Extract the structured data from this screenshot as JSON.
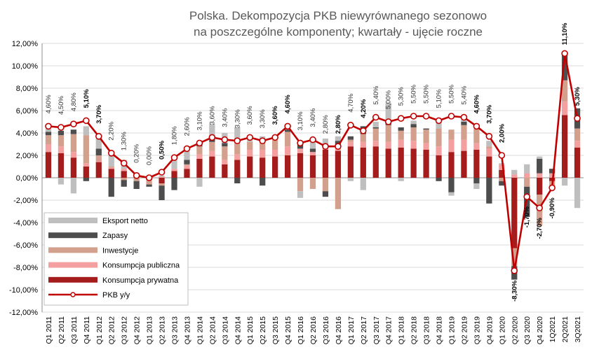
{
  "chart_data": {
    "type": "bar",
    "stacked": true,
    "title": "Polska. Dekompozycja PKB niewyrównanego sezonowo na poszczególne komponenty; kwartały - ujęcie roczne",
    "title_lines": [
      "Polska. Dekompozycja PKB niewyrównanego sezonowo",
      "na poszczególne komponenty; kwartały - ujęcie roczne"
    ],
    "xlabel": "",
    "ylabel": "",
    "ylim": [
      -12,
      12
    ],
    "yticks": [
      -12,
      -10,
      -8,
      -6,
      -4,
      -2,
      0,
      2,
      4,
      6,
      8,
      10,
      12
    ],
    "yticks_labels": [
      "-12,00%",
      "-10,00%",
      "-8,00%",
      "-6,00%",
      "-4,00%",
      "-2,00%",
      "0,00%",
      "2,00%",
      "4,00%",
      "6,00%",
      "8,00%",
      "10,00%",
      "12,00%"
    ],
    "grid": true,
    "legend_position": "bottom-left",
    "categories": [
      "Q1 2011",
      "Q2 2011",
      "Q3 2011",
      "Q4 2011",
      "Q1 2012",
      "Q2 2012",
      "Q3 2012",
      "Q4 2012",
      "Q1 2013",
      "Q2 2013",
      "Q3 2013",
      "Q4 2013",
      "Q1 2014",
      "Q2 2014",
      "Q3 2014",
      "Q4 2014",
      "Q1 2015",
      "Q2 2015",
      "Q3 2015",
      "Q4 2015",
      "Q1 2016",
      "Q2 2016",
      "Q3 2016",
      "Q4 2016",
      "Q1 2017",
      "Q2 2017",
      "Q3 2017",
      "Q4 2017",
      "Q1 2018",
      "Q2 2018",
      "Q3 2018",
      "Q4 2018",
      "Q1 2019",
      "Q2 2019",
      "Q3 2019",
      "Q4 2019",
      "Q1 2020",
      "Q2 2020",
      "Q3 2020",
      "Q4 2020",
      "1Q2021",
      "2Q2021",
      "3Q2021"
    ],
    "series": [
      {
        "name": "Konsumpcja prywatna",
        "color": "#A51C1C",
        "values": [
          2.3,
          2.2,
          1.8,
          1.0,
          1.4,
          0.8,
          0.6,
          0.1,
          -0.2,
          -0.5,
          0.6,
          0.8,
          1.7,
          1.9,
          1.2,
          1.6,
          1.9,
          1.8,
          1.9,
          2.0,
          2.2,
          2.0,
          2.5,
          2.4,
          2.8,
          2.7,
          2.8,
          2.6,
          2.7,
          2.6,
          2.5,
          2.0,
          2.3,
          2.4,
          2.5,
          1.9,
          0.7,
          -6.3,
          0.0,
          -1.5,
          -0.3,
          5.6,
          2.7
        ]
      },
      {
        "name": "Konsumpcja publiczna",
        "color": "#F4A0A0",
        "values": [
          0.7,
          0.6,
          0.5,
          0.3,
          0.1,
          0.1,
          0.2,
          0.1,
          0.1,
          0.1,
          0.2,
          0.3,
          0.4,
          0.5,
          0.4,
          0.5,
          0.6,
          0.7,
          0.6,
          0.8,
          0.4,
          0.3,
          0.5,
          0.4,
          0.4,
          0.5,
          0.5,
          0.6,
          0.7,
          0.7,
          0.6,
          0.8,
          1.1,
          1.0,
          0.6,
          0.7,
          0.5,
          0.3,
          0.4,
          0.4,
          0.4,
          1.2,
          0.6
        ]
      },
      {
        "name": "Inwestycje",
        "color": "#D4A08E",
        "values": [
          0.8,
          1.0,
          1.6,
          2.5,
          0.5,
          0.1,
          -0.2,
          -0.3,
          -0.4,
          -0.2,
          0.0,
          0.1,
          0.7,
          0.8,
          1.2,
          1.3,
          0.7,
          0.9,
          0.9,
          1.3,
          -1.2,
          -1.0,
          -1.2,
          -2.8,
          0.2,
          0.7,
          1.1,
          1.5,
          0.8,
          1.2,
          1.2,
          1.6,
          0.9,
          1.3,
          1.3,
          0.2,
          -0.3,
          -1.6,
          -0.8,
          -2.8,
          -0.6,
          1.9,
          1.1
        ]
      },
      {
        "name": "Zapasy",
        "color": "#4D4D4D",
        "values": [
          0.3,
          0.4,
          0.4,
          -0.3,
          0.6,
          -1.7,
          -0.6,
          -0.7,
          -0.2,
          -1.3,
          -1.1,
          0.4,
          0.4,
          0.5,
          0.3,
          -0.5,
          0.0,
          -0.7,
          0.0,
          0.2,
          0.6,
          0.3,
          -0.5,
          0.5,
          0.3,
          0.7,
          0.1,
          0.2,
          0.3,
          0.3,
          0.1,
          -0.3,
          -1.3,
          0.3,
          -0.5,
          -2.3,
          -0.4,
          -1.2,
          -2.7,
          1.3,
          0.4,
          2.3,
          1.8
        ]
      },
      {
        "name": "Eksport netto",
        "color": "#BFBFBF",
        "values": [
          0.3,
          -0.6,
          -1.4,
          0.8,
          1.2,
          1.4,
          0.8,
          0.2,
          0.1,
          0.1,
          1.1,
          0.8,
          -0.8,
          1.1,
          0.9,
          1.1,
          0.3,
          0.3,
          0.1,
          0.1,
          -0.6,
          0.6,
          0.5,
          0.4,
          -0.3,
          -1.1,
          0.5,
          1.8,
          -0.3,
          0.3,
          -0.1,
          0.7,
          -0.3,
          0.6,
          -0.5,
          0.5,
          0.1,
          0.4,
          0.8,
          0.2,
          -0.1,
          -0.7,
          -2.7
        ]
      },
      {
        "name": "PKB y/y",
        "type": "line",
        "color": "#C00000",
        "values": [
          4.6,
          4.5,
          4.8,
          5.1,
          3.7,
          2.2,
          1.3,
          0.2,
          0.0,
          0.5,
          1.8,
          2.6,
          3.1,
          3.6,
          3.4,
          3.3,
          3.6,
          3.3,
          3.6,
          4.6,
          3.1,
          3.4,
          2.8,
          2.8,
          4.7,
          4.2,
          5.4,
          5.0,
          5.3,
          5.5,
          5.5,
          5.1,
          5.5,
          5.4,
          4.6,
          3.7,
          2.0,
          -8.3,
          -1.7,
          -2.7,
          -0.9,
          11.1,
          5.3
        ],
        "labels": [
          "4,60%",
          "4,50%",
          "4,80%",
          "5,10%",
          "3,70%",
          "2,20%",
          "1,30%",
          "0,20%",
          "0,00%",
          "0,50%",
          "1,80%",
          "2,60%",
          "3,10%",
          "3,60%",
          "3,40%",
          "3,30%",
          "3,60%",
          "3,30%",
          "3,60%",
          "4,60%",
          "3,10%",
          "3,40%",
          "2,80%",
          "2,80%",
          "4,70%",
          "4,20%",
          "5,40%",
          "5,00%",
          "5,30%",
          "5,50%",
          "5,50%",
          "5,10%",
          "5,50%",
          "5,40%",
          "4,60%",
          "3,70%",
          "2,00%",
          "-8,30%",
          "-1,70%",
          "-2,70%",
          "-0,90%",
          "11,10%",
          "5,30%"
        ],
        "bold_labels": [
          3,
          4,
          9,
          18,
          19,
          23,
          25,
          34,
          35,
          36,
          37,
          38,
          39,
          40,
          41,
          42
        ]
      }
    ],
    "legend_order": [
      "Eksport netto",
      "Zapasy",
      "Inwestycje",
      "Konsumpcja publiczna",
      "Konsumpcja prywatna",
      "PKB y/y"
    ]
  }
}
